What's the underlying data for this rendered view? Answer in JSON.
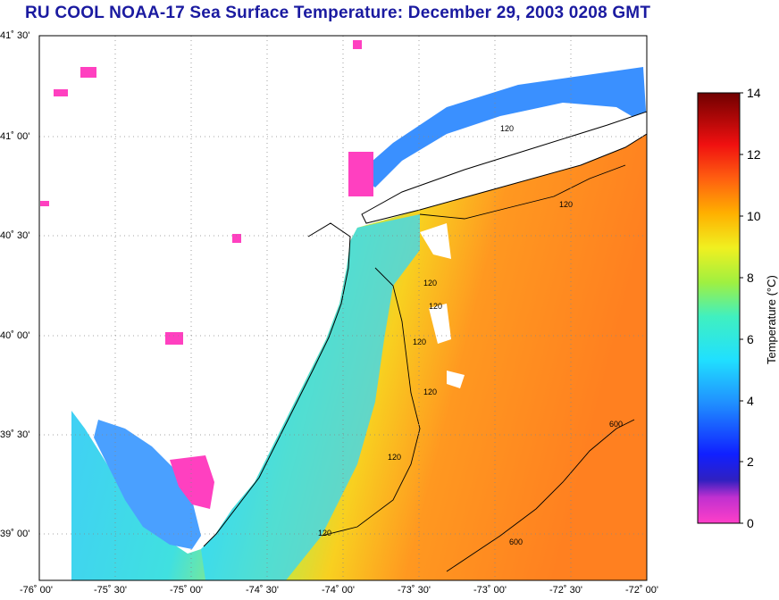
{
  "title": "RU COOL  NOAA-17  Sea Surface Temperature:  December 29, 2003 0208 GMT",
  "lat_labels": [
    "41˚ 30'",
    "41˚ 00'",
    "40˚ 30'",
    "40˚ 00'",
    "39˚ 30'",
    "39˚ 00'"
  ],
  "lon_labels": [
    "-76˚ 00'",
    "-75˚ 30'",
    "-75˚ 00'",
    "-74˚ 30'",
    "-74˚ 00'",
    "-73˚ 30'",
    "-73˚ 00'",
    "-72˚ 30'",
    "-72˚ 00'"
  ],
  "colorbar": {
    "title": "Temperature (°C)",
    "ticks": [
      "14",
      "12",
      "10",
      "8",
      "6",
      "4",
      "2",
      "0"
    ],
    "min": 0,
    "max": 14
  },
  "contours": {
    "label_120": "120",
    "label_600": "600"
  },
  "colors": {
    "land": "#ffffff",
    "cold_mask": "#ff40c0",
    "coast": "#000000"
  }
}
